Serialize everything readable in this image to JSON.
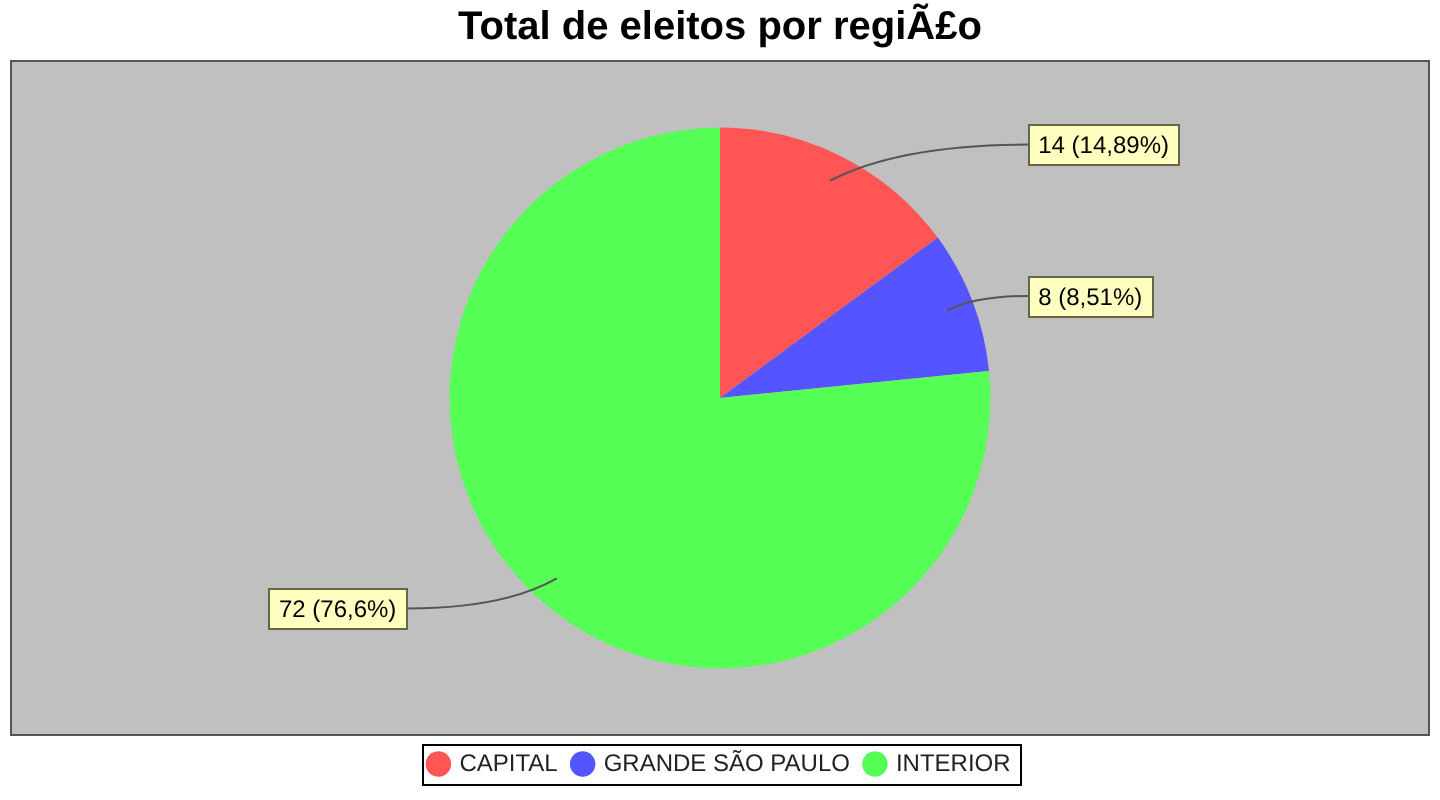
{
  "chart_data": {
    "type": "pie",
    "title": "Total de eleitos por regiÃ£o",
    "categories": [
      "CAPITAL",
      "GRANDE SÃO PAULO",
      "INTERIOR"
    ],
    "values": [
      14,
      8,
      72
    ],
    "colors": [
      "#ff5555",
      "#5555ff",
      "#55ff55"
    ],
    "value_labels": [
      "14 (14,89%)",
      "8 (8,51%)",
      "72 (76,6%)"
    ],
    "legend": "bottom"
  }
}
